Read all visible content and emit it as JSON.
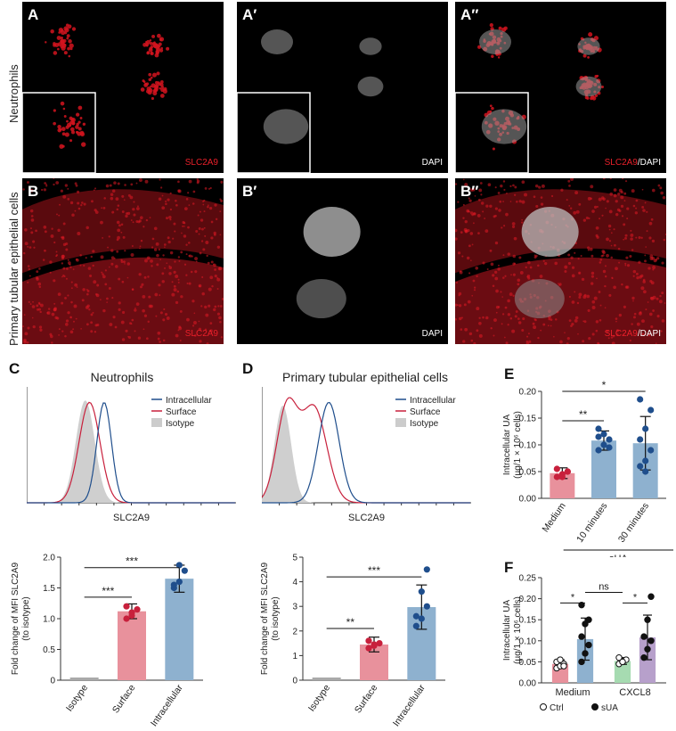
{
  "figure": {
    "row_labels": {
      "neutrophils": "Neutrophils",
      "ptec": "Primary tubular epithelial cells"
    },
    "image_panels": [
      {
        "id": "A",
        "channel": "SLC2A9",
        "channel_suffix": ""
      },
      {
        "id": "A′",
        "channel": "",
        "channel_suffix": "DAPI"
      },
      {
        "id": "A″",
        "channel": "SLC2A9",
        "channel_suffix": "/DAPI"
      },
      {
        "id": "B",
        "channel": "SLC2A9",
        "channel_suffix": ""
      },
      {
        "id": "B′",
        "channel": "",
        "channel_suffix": "DAPI"
      },
      {
        "id": "B″",
        "channel": "SLC2A9",
        "channel_suffix": "/DAPI"
      }
    ],
    "panel_C": {
      "label": "C",
      "title": "Neutrophils"
    },
    "panel_D": {
      "label": "D",
      "title": "Primary tubular epithelial cells"
    },
    "panel_E": {
      "label": "E"
    },
    "panel_F": {
      "label": "F"
    },
    "histogram_legend": [
      {
        "name": "Intracellular",
        "color": "#1f4e8c"
      },
      {
        "name": "Surface",
        "color": "#c8203c"
      },
      {
        "name": "Isotype",
        "color": "#cccccc"
      }
    ],
    "histogram_xlabel": "SLC2A9"
  },
  "chart_data": [
    {
      "id": "C-bar",
      "type": "bar",
      "ylabel": "Fold change of MFI SLC2A9 (to isotype)",
      "ylim": [
        0,
        2.0
      ],
      "yticks": [
        "0",
        "0.5",
        "1.0",
        "1.5",
        "2.0"
      ],
      "categories": [
        "Isotype",
        "Surface",
        "Intracellular"
      ],
      "values": [
        0.0,
        1.12,
        1.65
      ],
      "errors": [
        0.0,
        0.12,
        0.22
      ],
      "colors": [
        "#a9a9a9",
        "#e8919c",
        "#8eb1cf"
      ],
      "dot_colors": [
        "#a9a9a9",
        "#c8203c",
        "#1f4e8c"
      ],
      "points": [
        [
          0,
          0,
          0,
          0,
          0
        ],
        [
          1.0,
          1.1,
          1.15,
          1.2,
          1.05
        ],
        [
          1.5,
          1.6,
          1.78,
          1.55,
          1.87
        ]
      ],
      "sig": [
        {
          "label": "***",
          "from": 0,
          "to": 1,
          "y": 1.35
        },
        {
          "label": "***",
          "from": 0,
          "to": 2,
          "y": 1.83
        }
      ]
    },
    {
      "id": "D-bar",
      "type": "bar",
      "ylabel": "Fold change of MFI SLC2A9 (to isotype)",
      "ylim": [
        0,
        5
      ],
      "yticks": [
        "0",
        "1",
        "2",
        "3",
        "4",
        "5"
      ],
      "categories": [
        "Isotype",
        "Surface",
        "Intracellular"
      ],
      "values": [
        0.0,
        1.45,
        2.97
      ],
      "errors": [
        0.0,
        0.3,
        0.9
      ],
      "colors": [
        "#a9a9a9",
        "#e8919c",
        "#8eb1cf"
      ],
      "dot_colors": [
        "#a9a9a9",
        "#c8203c",
        "#1f4e8c"
      ],
      "points": [
        [
          0,
          0,
          0,
          0,
          0
        ],
        [
          1.3,
          1.4,
          1.5,
          1.6,
          1.45
        ],
        [
          2.2,
          2.5,
          3.0,
          2.6,
          3.6,
          4.5
        ]
      ],
      "sig": [
        {
          "label": "**",
          "from": 0,
          "to": 1,
          "y": 2.1
        },
        {
          "label": "***",
          "from": 0,
          "to": 2,
          "y": 4.2
        }
      ]
    },
    {
      "id": "E-bar",
      "type": "bar",
      "ylabel": "Intracellular UA (µg/1 × 10⁶ cells)",
      "ylim": [
        0,
        0.2
      ],
      "yticks": [
        "0.00",
        "0.05",
        "0.10",
        "0.15",
        "0.20"
      ],
      "categories": [
        "Medium",
        "10 minutes",
        "30 minutes"
      ],
      "group_label": "sUA",
      "values": [
        0.047,
        0.108,
        0.103
      ],
      "errors": [
        0.01,
        0.018,
        0.05
      ],
      "colors": [
        "#e8919c",
        "#8eb1cf",
        "#8eb1cf"
      ],
      "dot_colors": [
        "#c8203c",
        "#1f4e8c",
        "#1f4e8c"
      ],
      "points": [
        [
          0.04,
          0.045,
          0.05,
          0.055,
          0.04,
          0.05
        ],
        [
          0.09,
          0.1,
          0.11,
          0.115,
          0.12,
          0.095,
          0.13
        ],
        [
          0.06,
          0.07,
          0.09,
          0.11,
          0.13,
          0.165,
          0.185,
          0.05
        ]
      ],
      "sig": [
        {
          "label": "**",
          "from": 0,
          "to": 1,
          "y": 0.145
        },
        {
          "label": "*",
          "from": 0,
          "to": 2,
          "y": 0.2
        }
      ]
    },
    {
      "id": "F-bar",
      "type": "bar",
      "ylabel": "Intracellular UA (µg/1 × 10⁶ cells)",
      "ylim": [
        0,
        0.25
      ],
      "yticks": [
        "0.00",
        "0.05",
        "0.10",
        "0.15",
        "0.20",
        "0.25"
      ],
      "categories": [
        "Medium",
        "CXCL8"
      ],
      "series": [
        {
          "name": "Ctrl",
          "values": [
            0.045,
            0.052
          ],
          "errors": [
            0.01,
            0.008
          ],
          "colors": [
            "#e8919c",
            "#a6dbb1"
          ]
        },
        {
          "name": "sUA",
          "values": [
            0.104,
            0.108
          ],
          "errors": [
            0.05,
            0.053
          ],
          "colors": [
            "#8eb1cf",
            "#b7a0cb"
          ]
        }
      ],
      "points": [
        [
          [
            0.035,
            0.04,
            0.045,
            0.05,
            0.055,
            0.04
          ],
          [
            0.045,
            0.05,
            0.055,
            0.06,
            0.05
          ]
        ],
        [
          [
            0.05,
            0.07,
            0.09,
            0.11,
            0.14,
            0.15,
            0.185
          ],
          [
            0.06,
            0.08,
            0.1,
            0.11,
            0.15,
            0.205
          ]
        ]
      ],
      "sig": [
        {
          "label": "*",
          "between": "Medium",
          "y": 0.19
        },
        {
          "label": "*",
          "between": "CXCL8",
          "y": 0.19
        },
        {
          "label": "ns",
          "between": "across",
          "y": 0.215
        }
      ],
      "legend": [
        {
          "name": "Ctrl",
          "marker": "open"
        },
        {
          "name": "sUA",
          "marker": "filled"
        }
      ]
    }
  ]
}
